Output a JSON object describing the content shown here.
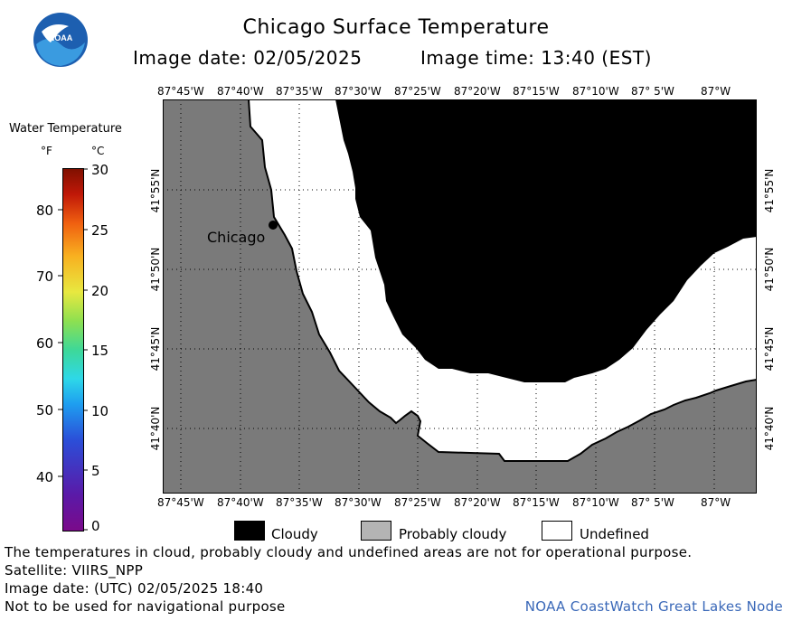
{
  "header": {
    "title": "Chicago Surface Temperature",
    "image_date": "Image date: 02/05/2025",
    "image_time": "Image time: 13:40 (EST)"
  },
  "logo": {
    "text": "NOAA"
  },
  "legend": {
    "title": "Water Temperature",
    "unit_f": "°F",
    "unit_c": "°C",
    "f_ticks": [
      "80",
      "70",
      "60",
      "50",
      "40"
    ],
    "c_ticks": [
      "30",
      "25",
      "20",
      "15",
      "10",
      "5",
      "0"
    ]
  },
  "map": {
    "lon_labels": [
      "87°45'W",
      "87°40'W",
      "87°35'W",
      "87°30'W",
      "87°25'W",
      "87°20'W",
      "87°15'W",
      "87°10'W",
      "87° 5'W",
      "87°W"
    ],
    "lat_labels": [
      "41°55'N",
      "41°50'N",
      "41°45'N",
      "41°40'N"
    ],
    "city_label": "Chicago",
    "colors": {
      "land": "#7a7a7a",
      "cloudy": "#000000",
      "undefined": "#ffffff",
      "probably_cloudy": "#b4b4b4"
    }
  },
  "key": {
    "cloudy": "Cloudy",
    "probably_cloudy": "Probably cloudy",
    "undefined": "Undefined"
  },
  "footer": {
    "disclaimer": "The temperatures in cloud, probably cloudy and undefined areas are not for operational purpose.",
    "satellite": "Satellite: VIIRS_NPP",
    "utc_date": "Image date: (UTC) 02/05/2025  18:40",
    "nav_warning": "Not to be used for navigational purpose",
    "credit": "NOAA CoastWatch Great Lakes Node"
  }
}
